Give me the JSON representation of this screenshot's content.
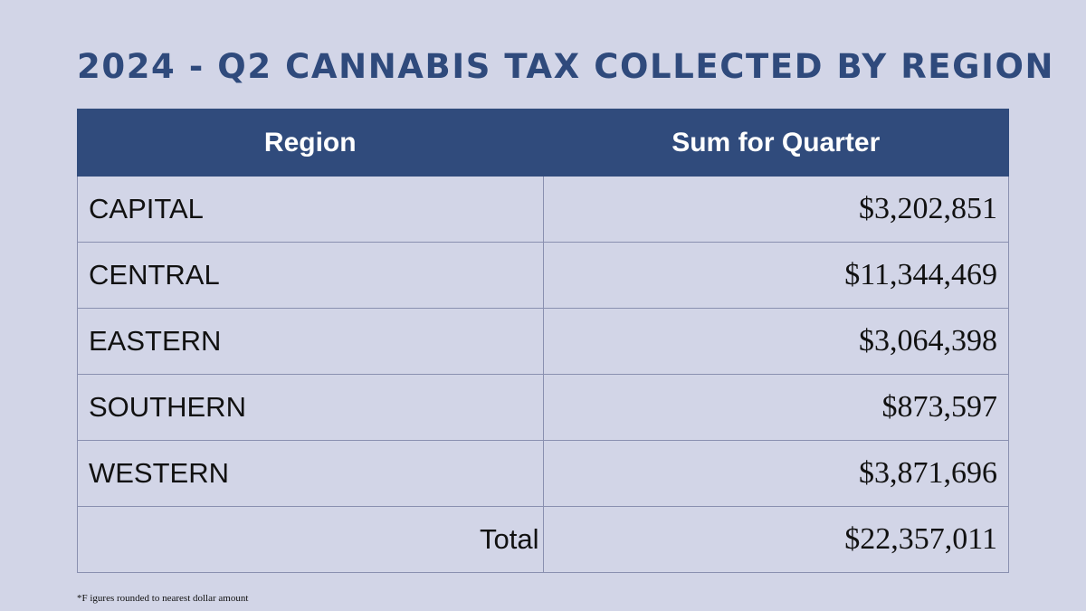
{
  "title": "2024 - Q2 CANNABIS TAX COLLECTED BY REGION",
  "table": {
    "header": [
      "Region",
      "Sum for Quarter"
    ],
    "rows": [
      [
        "CAPITAL",
        "$3,202,851"
      ],
      [
        "CENTRAL",
        "$11,344,469"
      ],
      [
        "EASTERN",
        "$3,064,398"
      ],
      [
        "SOUTHERN",
        "$873,597"
      ],
      [
        "WESTERN",
        "$3,871,696"
      ]
    ],
    "total": {
      "label": "Total",
      "value": "$22,357,011"
    }
  },
  "footnote": "*F igures rounded to nearest dollar amount"
}
